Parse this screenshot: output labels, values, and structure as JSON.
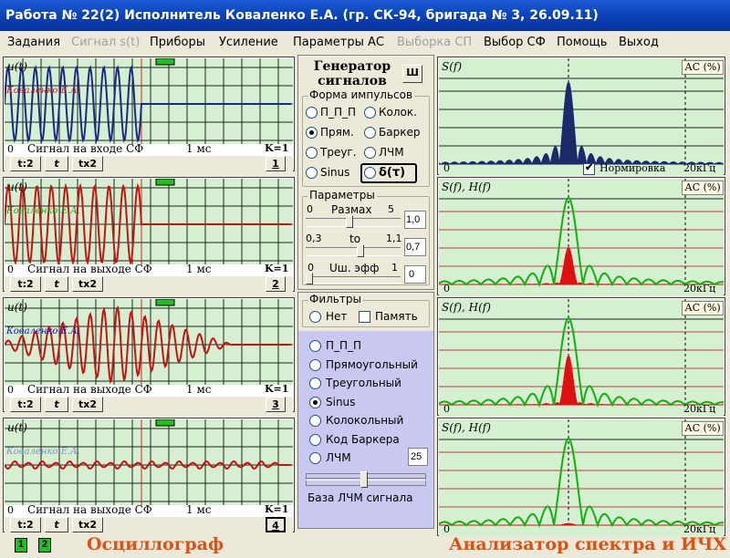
{
  "window": {
    "title": "Работа № 22(2)  Исполнитель Коваленко Е.А. (гр. СК-94, бригада № 3, 26.09.11)"
  },
  "menu": [
    {
      "label": "Задания",
      "enabled": true
    },
    {
      "label": "Сигнал s(t)",
      "enabled": false
    },
    {
      "label": "Приборы",
      "enabled": true
    },
    {
      "label": "Усиление",
      "enabled": true
    },
    {
      "label": "Параметры  АС",
      "enabled": true
    },
    {
      "label": "Выборка СП",
      "enabled": false
    },
    {
      "label": "Выбор СФ",
      "enabled": true
    },
    {
      "label": "Помощь",
      "enabled": true
    },
    {
      "label": "Выход",
      "enabled": true
    }
  ],
  "oscilloscope": {
    "footer": "Осциллограф",
    "channels": [
      {
        "ylabel": "u(t)",
        "watermark": "Коваленко Е.А.",
        "caption": "Сигнал на входе СФ",
        "zero": "0",
        "time": "1 мс",
        "k": "K=1",
        "btn_half": "t:2",
        "btn_t": "t",
        "btn_double": "tx2",
        "number": "1",
        "color": "#1a2a8a"
      },
      {
        "ylabel": "u(t)",
        "watermark": "Коваленко Е.А.",
        "caption": "Сигнал на выходе СФ",
        "zero": "0",
        "time": "1 мс",
        "k": "K=1",
        "btn_half": "t:2",
        "btn_t": "t",
        "btn_double": "tx2",
        "number": "2",
        "color": "#cc1010"
      },
      {
        "ylabel": "u(t)",
        "watermark": "Коваленко Е.А.",
        "caption": "Сигнал на выходе СФ",
        "zero": "0",
        "time": "1 мс",
        "k": "K=1",
        "btn_half": "t:2",
        "btn_t": "t",
        "btn_double": "tx2",
        "number": "3",
        "color": "#cc1010"
      },
      {
        "ylabel": "u(t)",
        "watermark": "Коваленко Е.А.",
        "caption": "Сигнал на выходе СФ",
        "zero": "0",
        "time": "1 мс",
        "k": "K=1",
        "btn_half": "t:2",
        "btn_t": "t",
        "btn_double": "tx2",
        "number": "4",
        "color": "#cc1010"
      }
    ],
    "status": [
      "1",
      "2"
    ]
  },
  "generator": {
    "title_line1": "Генератор",
    "title_line2": "сигналов",
    "close_label": "Ш",
    "pulse_group": "Форма  импульсов",
    "pulse_forms": [
      {
        "label": "П_П_П",
        "selected": false
      },
      {
        "label": "Колок.",
        "selected": false
      },
      {
        "label": "Прям.",
        "selected": true
      },
      {
        "label": "Баркер",
        "selected": false
      },
      {
        "label": "Треуг.",
        "selected": false
      },
      {
        "label": "ЛЧМ",
        "selected": false
      },
      {
        "label": "Sinus",
        "selected": false
      },
      {
        "label": "δ(τ)",
        "selected": false
      }
    ],
    "params_group": "Параметры",
    "razmah": {
      "min": "0",
      "label": "Размах",
      "max": "5",
      "value": "1,0"
    },
    "to": {
      "min": "0,3",
      "label": "to",
      "max": "1,1",
      "value": "0,7"
    },
    "noise": {
      "min": "0",
      "label": "Uш. эфф",
      "max": "1",
      "value": "0"
    }
  },
  "filters": {
    "group": "Фильтры",
    "none_label": "Нет",
    "memory_label": "Память",
    "list": [
      {
        "label": "П_П_П",
        "selected": false
      },
      {
        "label": "Прямоугольный",
        "selected": false
      },
      {
        "label": "Треугольный",
        "selected": false
      },
      {
        "label": "Sinus",
        "selected": true
      },
      {
        "label": "Колокольный",
        "selected": false
      },
      {
        "label": "Код Баркера",
        "selected": false
      },
      {
        "label": "ЛЧМ",
        "selected": false
      }
    ],
    "lchm_value": "25",
    "lchm_caption": "База ЛЧМ сигнала"
  },
  "analyzer": {
    "footer": "Анализатор спектра и ИЧХ",
    "panels": [
      {
        "ylabel": "S(f)",
        "ac": "АС (%)",
        "zero": "0",
        "freq": "20кГц",
        "norm_label": "Нормировка"
      },
      {
        "ylabel": "S(f), H(f)",
        "ac": "АС (%)",
        "zero": "0",
        "freq": "20кГц"
      },
      {
        "ylabel": "S(f), H(f)",
        "ac": "АС (%)",
        "zero": "0",
        "freq": "20кГц"
      },
      {
        "ylabel": "S(f), H(f)",
        "ac": "АС (%)",
        "zero": "0",
        "freq": "20кГц"
      }
    ]
  },
  "colors": {
    "plot_bg": "#d4f0d0",
    "spectrum_input": "#1a2a6a",
    "spectrum_output": "#e01010",
    "filter_response": "#10b010",
    "osc_input": "#1a2a8a",
    "osc_output": "#cc1010"
  }
}
